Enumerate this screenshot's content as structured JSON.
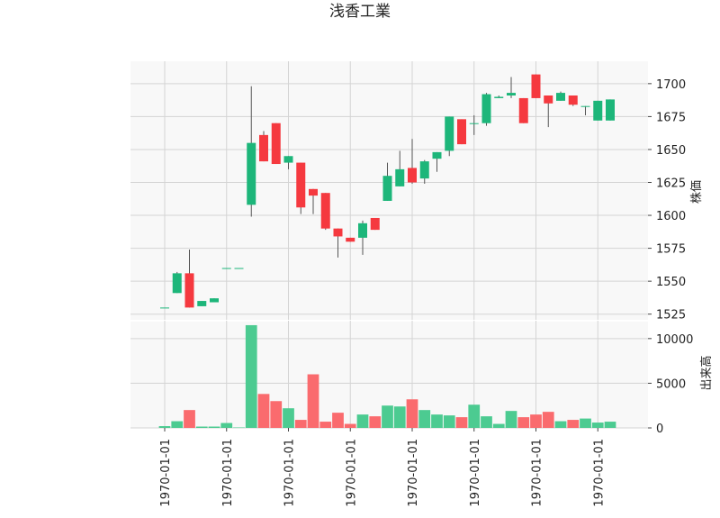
{
  "chart_data": {
    "type": "candlestick",
    "title": "浅香工業",
    "price_axis_label": "株価",
    "volume_axis_label": "出来高",
    "price_ylim": [
      1520,
      1717
    ],
    "price_ticks": [
      1525,
      1550,
      1575,
      1600,
      1625,
      1650,
      1675,
      1700
    ],
    "volume_ylim": [
      0,
      12000
    ],
    "volume_ticks": [
      0,
      5000,
      10000
    ],
    "x_tick_labels": [
      "1970-01-01",
      "1970-01-01",
      "1970-01-01",
      "1970-01-01",
      "1970-01-01",
      "1970-01-01",
      "1970-01-01",
      "1970-01-01"
    ],
    "up_color": "#1db67a",
    "down_color": "#f5393f",
    "volume_up_color": "#4ccb91",
    "volume_down_color": "#fa6b6e",
    "grid": true,
    "candles": [
      {
        "open": 1530,
        "high": 1530,
        "low": 1530,
        "close": 1530,
        "volume": 200
      },
      {
        "open": 1541,
        "high": 1557,
        "low": 1541,
        "close": 1556,
        "volume": 750
      },
      {
        "open": 1556,
        "high": 1574,
        "low": 1530,
        "close": 1530,
        "volume": 2000
      },
      {
        "open": 1531,
        "high": 1535,
        "low": 1531,
        "close": 1535,
        "volume": 150
      },
      {
        "open": 1534,
        "high": 1537,
        "low": 1534,
        "close": 1537,
        "volume": 150
      },
      {
        "open": 1560,
        "high": 1560,
        "low": 1560,
        "close": 1560,
        "volume": 550
      },
      {
        "open": 1560,
        "high": 1560,
        "low": 1560,
        "close": 1560,
        "volume": 50
      },
      {
        "open": 1608,
        "high": 1698,
        "low": 1599,
        "close": 1655,
        "volume": 11500
      },
      {
        "open": 1661,
        "high": 1664,
        "low": 1641,
        "close": 1641,
        "volume": 3800
      },
      {
        "open": 1670,
        "high": 1670,
        "low": 1639,
        "close": 1639,
        "volume": 3000
      },
      {
        "open": 1640,
        "high": 1645,
        "low": 1635,
        "close": 1645,
        "volume": 2200
      },
      {
        "open": 1640,
        "high": 1640,
        "low": 1601,
        "close": 1606,
        "volume": 900
      },
      {
        "open": 1620,
        "high": 1620,
        "low": 1601,
        "close": 1615,
        "volume": 6000
      },
      {
        "open": 1617,
        "high": 1617,
        "low": 1589,
        "close": 1590,
        "volume": 700
      },
      {
        "open": 1590,
        "high": 1590,
        "low": 1568,
        "close": 1584,
        "volume": 1700
      },
      {
        "open": 1583,
        "high": 1583,
        "low": 1580,
        "close": 1580,
        "volume": 450
      },
      {
        "open": 1583,
        "high": 1596,
        "low": 1570,
        "close": 1594,
        "volume": 1500
      },
      {
        "open": 1598,
        "high": 1598,
        "low": 1589,
        "close": 1589,
        "volume": 1300
      },
      {
        "open": 1611,
        "high": 1640,
        "low": 1611,
        "close": 1630,
        "volume": 2500
      },
      {
        "open": 1622,
        "high": 1649,
        "low": 1622,
        "close": 1635,
        "volume": 2400
      },
      {
        "open": 1636,
        "high": 1658,
        "low": 1624,
        "close": 1625,
        "volume": 3200
      },
      {
        "open": 1628,
        "high": 1642,
        "low": 1624,
        "close": 1641,
        "volume": 2000
      },
      {
        "open": 1643,
        "high": 1648,
        "low": 1633,
        "close": 1648,
        "volume": 1500
      },
      {
        "open": 1649,
        "high": 1675,
        "low": 1645,
        "close": 1675,
        "volume": 1400
      },
      {
        "open": 1673,
        "high": 1673,
        "low": 1654,
        "close": 1654,
        "volume": 1200
      },
      {
        "open": 1670,
        "high": 1676,
        "low": 1661,
        "close": 1670,
        "volume": 2600
      },
      {
        "open": 1670,
        "high": 1693,
        "low": 1668,
        "close": 1692,
        "volume": 1300
      },
      {
        "open": 1689,
        "high": 1691,
        "low": 1689,
        "close": 1690,
        "volume": 450
      },
      {
        "open": 1691,
        "high": 1705,
        "low": 1689,
        "close": 1693,
        "volume": 1900
      },
      {
        "open": 1689,
        "high": 1689,
        "low": 1670,
        "close": 1670,
        "volume": 1200
      },
      {
        "open": 1707,
        "high": 1707,
        "low": 1689,
        "close": 1689,
        "volume": 1500
      },
      {
        "open": 1691,
        "high": 1691,
        "low": 1667,
        "close": 1685,
        "volume": 1800
      },
      {
        "open": 1687,
        "high": 1694,
        "low": 1687,
        "close": 1693,
        "volume": 750
      },
      {
        "open": 1691,
        "high": 1691,
        "low": 1683,
        "close": 1684,
        "volume": 900
      },
      {
        "open": 1683,
        "high": 1683,
        "low": 1676,
        "close": 1683,
        "volume": 1050
      },
      {
        "open": 1672,
        "high": 1687,
        "low": 1672,
        "close": 1687,
        "volume": 600
      },
      {
        "open": 1672,
        "high": 1688,
        "low": 1672,
        "close": 1688,
        "volume": 700
      }
    ]
  }
}
